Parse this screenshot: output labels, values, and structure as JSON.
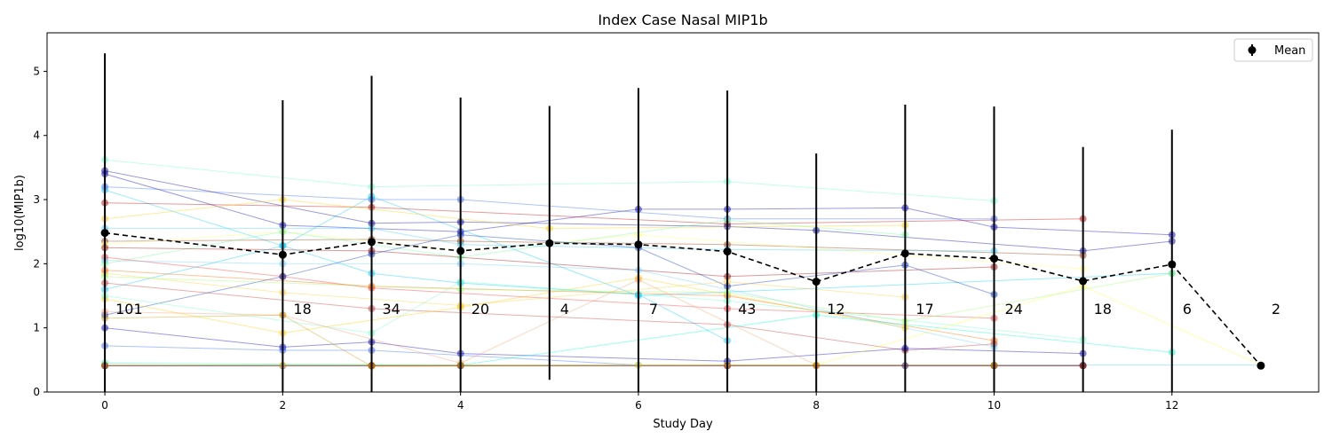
{
  "chart_data": {
    "type": "line",
    "title": "Index Case Nasal MIP1b",
    "xlabel": "Study Day",
    "ylabel": "log10(MIP1b)",
    "xlim": [
      -0.65,
      13.65
    ],
    "ylim": [
      0,
      5.6
    ],
    "x_ticks": [
      0,
      2,
      4,
      6,
      8,
      10,
      12
    ],
    "y_ticks": [
      0,
      1,
      2,
      3,
      4,
      5
    ],
    "grid": false,
    "legend": {
      "position": "top-right",
      "entries": [
        "Mean"
      ]
    },
    "colors": {
      "mean": "#000000",
      "errorbar": "#000000"
    },
    "mean": {
      "name": "Mean",
      "x": [
        0,
        2,
        3,
        4,
        5,
        6,
        7,
        8,
        9,
        10,
        11,
        12,
        13
      ],
      "y": [
        2.48,
        2.14,
        2.34,
        2.2,
        2.32,
        2.3,
        2.19,
        1.72,
        2.16,
        2.08,
        1.73,
        1.99,
        0.41
      ],
      "err_low": [
        0.0,
        0.0,
        0.0,
        0.0,
        0.19,
        0.0,
        0.0,
        0.0,
        0.0,
        0.0,
        0.0,
        0.0,
        0.41
      ],
      "err_high": [
        5.28,
        4.55,
        4.93,
        4.59,
        4.46,
        4.74,
        4.7,
        3.72,
        4.48,
        4.45,
        3.82,
        4.09,
        0.41
      ],
      "n": [
        "101",
        "18",
        "34",
        "20",
        "4",
        "7",
        "43",
        "12",
        "17",
        "24",
        "18",
        "6",
        "2"
      ]
    },
    "subjects": [
      {
        "color": "#0000cc",
        "x": [
          0,
          2,
          4,
          6,
          7,
          9,
          10,
          12
        ],
        "y": [
          3.4,
          2.6,
          2.5,
          2.85,
          2.85,
          2.87,
          2.57,
          2.45
        ]
      },
      {
        "color": "#3366ff",
        "x": [
          0,
          3,
          4,
          7,
          10
        ],
        "y": [
          3.2,
          3.0,
          3.0,
          2.7,
          2.7
        ]
      },
      {
        "color": "#66ffcc",
        "x": [
          0,
          3,
          7,
          10
        ],
        "y": [
          3.62,
          3.2,
          3.28,
          2.98
        ]
      },
      {
        "color": "#00ccff",
        "x": [
          0,
          2,
          3,
          6,
          12
        ],
        "y": [
          3.15,
          2.28,
          3.05,
          1.5,
          1.85
        ]
      },
      {
        "color": "#cc0000",
        "x": [
          0,
          3,
          7,
          11
        ],
        "y": [
          2.95,
          2.88,
          2.62,
          2.7
        ]
      },
      {
        "color": "#0000aa",
        "x": [
          0,
          3,
          4,
          7,
          8,
          11,
          12
        ],
        "y": [
          3.45,
          2.63,
          2.65,
          2.58,
          2.52,
          2.2,
          2.35
        ]
      },
      {
        "color": "#ffcc00",
        "x": [
          0,
          2,
          5,
          9
        ],
        "y": [
          2.7,
          3.0,
          2.55,
          2.6
        ]
      },
      {
        "color": "#993300",
        "x": [
          0,
          3,
          4,
          7,
          11
        ],
        "y": [
          2.35,
          2.38,
          2.35,
          2.3,
          2.13
        ]
      },
      {
        "color": "#ffff66",
        "x": [
          0,
          2,
          4,
          6,
          11
        ],
        "y": [
          2.3,
          2.5,
          2.2,
          2.45,
          1.92
        ]
      },
      {
        "color": "#33ccff",
        "x": [
          0,
          3,
          4,
          7,
          10
        ],
        "y": [
          2.55,
          2.55,
          2.3,
          2.22,
          2.2
        ]
      },
      {
        "color": "#66ff99",
        "x": [
          0,
          2,
          4,
          7,
          9
        ],
        "y": [
          2.0,
          2.5,
          2.1,
          2.68,
          2.45
        ]
      },
      {
        "color": "#aa0000",
        "x": [
          0,
          3,
          7,
          10
        ],
        "y": [
          2.25,
          2.2,
          1.8,
          1.95
        ]
      },
      {
        "color": "#ff3333",
        "x": [
          0,
          2,
          3,
          7,
          10
        ],
        "y": [
          2.1,
          1.8,
          1.62,
          1.3,
          1.15
        ]
      },
      {
        "color": "#0033cc",
        "x": [
          0,
          2,
          3,
          4,
          6,
          7,
          9,
          10
        ],
        "y": [
          1.2,
          1.8,
          2.15,
          2.45,
          2.25,
          1.65,
          1.98,
          1.52
        ]
      },
      {
        "color": "#00ccff",
        "x": [
          0,
          2,
          3,
          4,
          6,
          7
        ],
        "y": [
          1.6,
          2.28,
          1.85,
          1.7,
          1.52,
          0.8
        ]
      },
      {
        "color": "#ffcc33",
        "x": [
          0,
          2,
          4,
          7,
          9
        ],
        "y": [
          1.85,
          1.55,
          1.35,
          1.72,
          1.48
        ]
      },
      {
        "color": "#cc3333",
        "x": [
          0,
          3,
          7,
          9,
          10
        ],
        "y": [
          1.7,
          1.3,
          1.05,
          0.65,
          0.75
        ]
      },
      {
        "color": "#ff6600",
        "x": [
          0,
          3,
          7,
          10
        ],
        "y": [
          1.9,
          1.65,
          1.5,
          0.8
        ]
      },
      {
        "color": "#0000cc",
        "x": [
          0,
          2,
          3,
          4,
          7,
          9,
          11
        ],
        "y": [
          1.0,
          0.7,
          0.78,
          0.6,
          0.48,
          0.68,
          0.6
        ]
      },
      {
        "color": "#3366ff",
        "x": [
          0,
          2,
          3,
          6
        ],
        "y": [
          0.72,
          0.65,
          0.65,
          0.42
        ]
      },
      {
        "color": "#ffcc00",
        "x": [
          0,
          2,
          4,
          6,
          9
        ],
        "y": [
          1.45,
          0.92,
          1.32,
          1.78,
          1.0
        ]
      },
      {
        "color": "#66ffcc",
        "x": [
          0,
          3,
          4,
          7,
          11
        ],
        "y": [
          1.5,
          0.92,
          1.72,
          1.42,
          0.82
        ]
      },
      {
        "color": "#ff9966",
        "x": [
          0,
          2,
          4,
          6,
          8
        ],
        "y": [
          1.25,
          1.2,
          0.45,
          1.75,
          0.42
        ]
      },
      {
        "color": "#00ffcc",
        "x": [
          0,
          4,
          8,
          12
        ],
        "y": [
          0.45,
          0.42,
          1.2,
          0.62
        ]
      },
      {
        "color": "#33ccff",
        "x": [
          0,
          7,
          11,
          13
        ],
        "y": [
          0.42,
          0.42,
          0.42,
          0.42
        ]
      },
      {
        "color": "#ff0000",
        "x": [
          0,
          3,
          7,
          11
        ],
        "y": [
          0.41,
          0.41,
          0.41,
          0.41
        ]
      },
      {
        "color": "#330066",
        "x": [
          0,
          2,
          3,
          4,
          7,
          9,
          10,
          11
        ],
        "y": [
          0.41,
          0.41,
          0.41,
          0.41,
          0.41,
          0.41,
          0.41,
          0.41
        ]
      },
      {
        "color": "#ffff33",
        "x": [
          0,
          2,
          4,
          6,
          8,
          11,
          13
        ],
        "y": [
          0.42,
          0.42,
          0.42,
          0.42,
          0.42,
          1.65,
          0.42
        ]
      },
      {
        "color": "#993300",
        "x": [
          0,
          3,
          4,
          8,
          10,
          11
        ],
        "y": [
          0.41,
          0.41,
          0.41,
          0.41,
          0.41,
          0.41
        ]
      },
      {
        "color": "#cc9900",
        "x": [
          0,
          2,
          3,
          7,
          10
        ],
        "y": [
          1.15,
          1.2,
          0.4,
          0.42,
          0.42
        ]
      },
      {
        "color": "#66ccff",
        "x": [
          0,
          2,
          4,
          6,
          10
        ],
        "y": [
          2.05,
          2.0,
          2.0,
          1.9,
          0.7
        ]
      },
      {
        "color": "#99ff66",
        "x": [
          0,
          4,
          7,
          9,
          12
        ],
        "y": [
          1.8,
          1.6,
          1.55,
          1.1,
          1.85
        ]
      }
    ]
  }
}
